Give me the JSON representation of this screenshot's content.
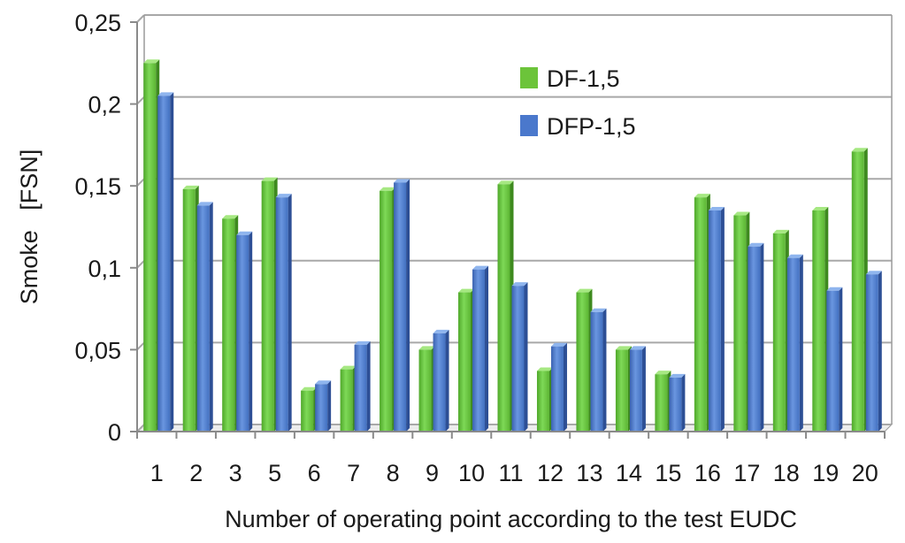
{
  "chart_data": {
    "type": "bar",
    "title": "",
    "xlabel": "Number of operating point according to the test EUDC",
    "ylabel": "Smoke   [FSN]",
    "categories": [
      "1",
      "2",
      "3",
      "5",
      "6",
      "7",
      "8",
      "9",
      "10",
      "11",
      "12",
      "13",
      "14",
      "15",
      "16",
      "17",
      "18",
      "19",
      "20"
    ],
    "series": [
      {
        "name": "DF-1,5",
        "color": "#6cc43a",
        "values": [
          0.225,
          0.148,
          0.13,
          0.153,
          0.025,
          0.038,
          0.147,
          0.05,
          0.085,
          0.151,
          0.037,
          0.085,
          0.05,
          0.035,
          0.143,
          0.132,
          0.121,
          0.135,
          0.171
        ]
      },
      {
        "name": "DFP-1,5",
        "color": "#4a78cc",
        "values": [
          0.205,
          0.138,
          0.12,
          0.143,
          0.029,
          0.053,
          0.152,
          0.06,
          0.099,
          0.089,
          0.052,
          0.073,
          0.05,
          0.033,
          0.135,
          0.113,
          0.106,
          0.086,
          0.096
        ]
      }
    ],
    "ylim": [
      0,
      0.25
    ],
    "yticks": [
      0,
      0.05,
      0.1,
      0.15,
      0.2,
      0.25
    ],
    "ytick_labels": [
      "0",
      "0,05",
      "0,1",
      "0,15",
      "0,2",
      "0,25"
    ],
    "grid": true,
    "legend_position": "top-center"
  }
}
